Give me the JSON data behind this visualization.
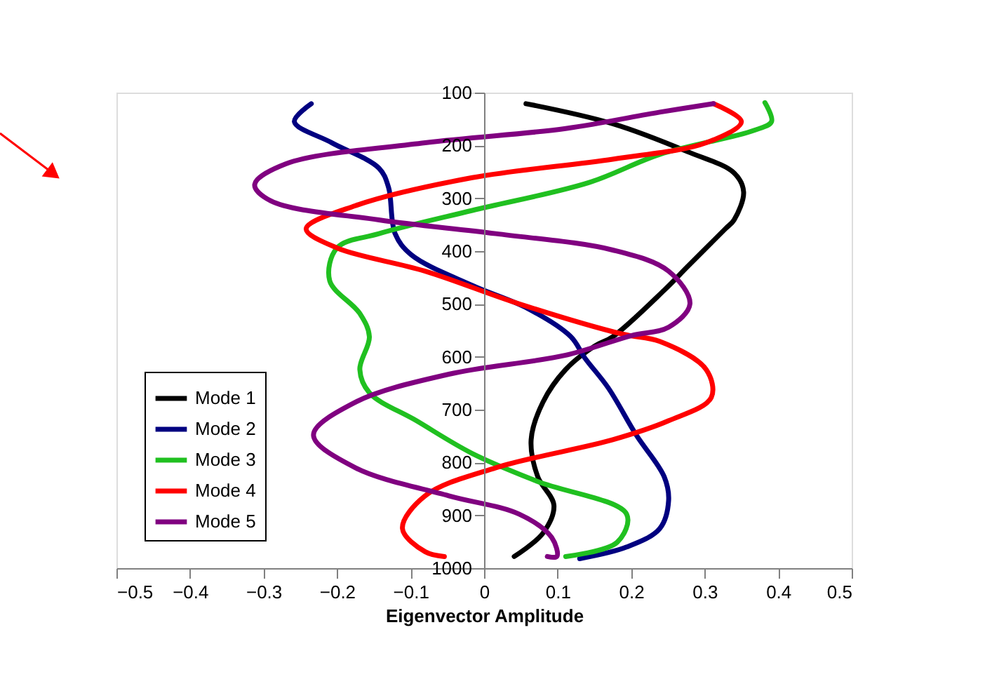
{
  "chart_data": {
    "type": "line",
    "xlabel": "Eigenvector Amplitude",
    "xlim": [
      -0.5,
      0.5
    ],
    "xticks": [
      -0.5,
      -0.4,
      -0.3,
      -0.2,
      -0.1,
      0,
      0.1,
      0.2,
      0.3,
      0.4,
      0.5
    ],
    "ylim": [
      1000,
      100
    ],
    "yticks": [
      100,
      200,
      300,
      400,
      500,
      600,
      700,
      800,
      900,
      1000
    ],
    "grid": false,
    "legend": "bottom left",
    "marker": "none",
    "line_style": "solid",
    "series": [
      {
        "name": "Mode 1",
        "color": "#000000",
        "x": [
          0.057,
          0.175,
          0.277,
          0.34,
          0.353,
          0.34,
          0.328,
          0.277,
          0.245,
          0.175,
          0.15,
          0.111,
          0.08,
          0.064,
          0.073,
          0.095,
          0.08,
          0.041
        ],
        "values": [
          121,
          159,
          212,
          252,
          288,
          341,
          358,
          429,
          474,
          562,
          580,
          624,
          686,
          757,
          827,
          881,
          934,
          978
        ]
      },
      {
        "name": "Mode 2",
        "color": "#000080",
        "x": [
          -0.235,
          -0.258,
          -0.207,
          -0.143,
          -0.13,
          -0.121,
          -0.099,
          -0.016,
          0.06,
          0.118,
          0.137,
          0.169,
          0.207,
          0.245,
          0.251,
          0.239,
          0.194,
          0.13
        ],
        "values": [
          121,
          155,
          195,
          243,
          279,
          367,
          407,
          465,
          509,
          562,
          602,
          659,
          748,
          827,
          872,
          925,
          960,
          982
        ]
      },
      {
        "name": "Mode 3",
        "color": "#20c020",
        "x": [
          0.382,
          0.391,
          0.366,
          0.239,
          0.143,
          -0.016,
          -0.143,
          -0.2,
          -0.21,
          -0.169,
          -0.156,
          -0.169,
          -0.156,
          -0.092,
          -0.016,
          0.073,
          0.194,
          0.181,
          0.111
        ],
        "values": [
          119,
          155,
          172,
          217,
          270,
          323,
          367,
          394,
          456,
          518,
          562,
          624,
          668,
          721,
          783,
          836,
          898,
          951,
          978
        ]
      },
      {
        "name": "Mode 4",
        "color": "#ff0000",
        "x": [
          0.312,
          0.35,
          0.302,
          0.175,
          -0.016,
          -0.175,
          -0.242,
          -0.2,
          -0.08,
          0.048,
          0.188,
          0.239,
          0.302,
          0.309,
          0.251,
          0.175,
          0.016,
          -0.08,
          -0.111,
          -0.08,
          -0.054
        ],
        "values": [
          121,
          155,
          195,
          226,
          261,
          314,
          358,
          394,
          438,
          500,
          557,
          571,
          624,
          677,
          721,
          757,
          810,
          863,
          925,
          969,
          978
        ]
      },
      {
        "name": "Mode 5",
        "color": "#800080",
        "x": [
          0.312,
          0.239,
          0.111,
          -0.08,
          -0.27,
          -0.312,
          -0.29,
          -0.143,
          0.016,
          0.175,
          0.251,
          0.28,
          0.251,
          0.2,
          0.111,
          -0.048,
          -0.175,
          -0.232,
          -0.175,
          -0.048,
          0.048,
          0.092,
          0.099,
          0.086
        ],
        "values": [
          121,
          137,
          168,
          195,
          235,
          274,
          305,
          341,
          367,
          398,
          438,
          500,
          544,
          560,
          597,
          633,
          686,
          748,
          810,
          863,
          898,
          942,
          978,
          978
        ]
      }
    ]
  }
}
